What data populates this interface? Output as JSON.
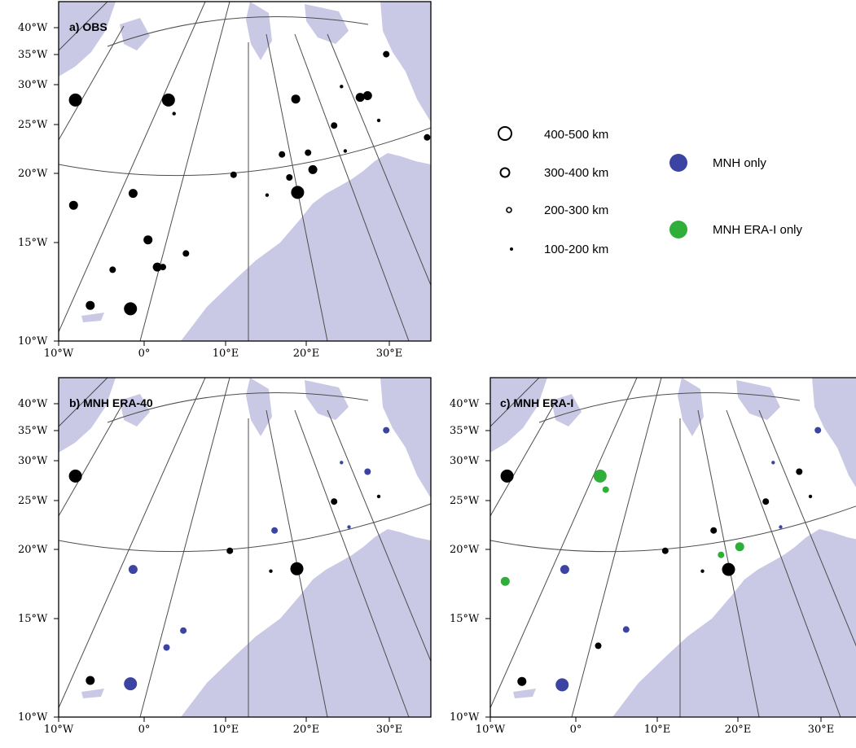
{
  "colors": {
    "land": "#c9c9e6",
    "frame": "#000000",
    "grid": "#4d4d4d",
    "obs": "#000000",
    "mnh_only": "#3b43a3",
    "mnh_erai_only": "#2fae3a"
  },
  "axes": {
    "y_ticks": [
      "40°W",
      "35°W",
      "30°W",
      "25°W",
      "20°W",
      "15°W",
      "10°W"
    ],
    "x_ticks": [
      "10°W",
      "0°",
      "10°E",
      "20°E",
      "30°E"
    ]
  },
  "legend": {
    "sizes": [
      {
        "label": "400-500 km",
        "size_class": 4
      },
      {
        "label": "300-400 km",
        "size_class": 3
      },
      {
        "label": "200-300 km",
        "size_class": 2
      },
      {
        "label": "100-200 km",
        "size_class": 1
      }
    ],
    "categories": [
      {
        "label": "MNH  only",
        "color_key": "mnh_only"
      },
      {
        "label": "MNH  ERA-I  only",
        "color_key": "mnh_erai_only"
      }
    ]
  },
  "panels": [
    {
      "id": "a",
      "title": "a) OBS",
      "points": [
        {
          "x": 0.045,
          "y": 0.29,
          "size": 4,
          "cat": "obs"
        },
        {
          "x": 0.295,
          "y": 0.29,
          "size": 4,
          "cat": "obs"
        },
        {
          "x": 0.31,
          "y": 0.33,
          "size": 1,
          "cat": "obs"
        },
        {
          "x": 0.88,
          "y": 0.155,
          "size": 2,
          "cat": "obs"
        },
        {
          "x": 0.637,
          "y": 0.287,
          "size": 3,
          "cat": "obs"
        },
        {
          "x": 0.76,
          "y": 0.25,
          "size": 1,
          "cat": "obs"
        },
        {
          "x": 0.81,
          "y": 0.282,
          "size": 3,
          "cat": "obs"
        },
        {
          "x": 0.83,
          "y": 0.277,
          "size": 3,
          "cat": "obs"
        },
        {
          "x": 0.86,
          "y": 0.35,
          "size": 1,
          "cat": "obs"
        },
        {
          "x": 0.74,
          "y": 0.365,
          "size": 2,
          "cat": "obs"
        },
        {
          "x": 0.99,
          "y": 0.4,
          "size": 2,
          "cat": "obs"
        },
        {
          "x": 0.6,
          "y": 0.45,
          "size": 2,
          "cat": "obs"
        },
        {
          "x": 0.67,
          "y": 0.445,
          "size": 2,
          "cat": "obs"
        },
        {
          "x": 0.77,
          "y": 0.44,
          "size": 1,
          "cat": "obs"
        },
        {
          "x": 0.683,
          "y": 0.495,
          "size": 3,
          "cat": "obs"
        },
        {
          "x": 0.62,
          "y": 0.518,
          "size": 2,
          "cat": "obs"
        },
        {
          "x": 0.47,
          "y": 0.51,
          "size": 2,
          "cat": "obs"
        },
        {
          "x": 0.56,
          "y": 0.57,
          "size": 1,
          "cat": "obs"
        },
        {
          "x": 0.642,
          "y": 0.562,
          "size": 4,
          "cat": "obs"
        },
        {
          "x": 0.04,
          "y": 0.6,
          "size": 3,
          "cat": "obs"
        },
        {
          "x": 0.2,
          "y": 0.565,
          "size": 3,
          "cat": "obs"
        },
        {
          "x": 0.24,
          "y": 0.702,
          "size": 3,
          "cat": "obs"
        },
        {
          "x": 0.342,
          "y": 0.742,
          "size": 2,
          "cat": "obs"
        },
        {
          "x": 0.265,
          "y": 0.782,
          "size": 3,
          "cat": "obs"
        },
        {
          "x": 0.28,
          "y": 0.782,
          "size": 2,
          "cat": "obs"
        },
        {
          "x": 0.145,
          "y": 0.79,
          "size": 2,
          "cat": "obs"
        },
        {
          "x": 0.085,
          "y": 0.895,
          "size": 3,
          "cat": "obs"
        },
        {
          "x": 0.193,
          "y": 0.905,
          "size": 4,
          "cat": "obs"
        }
      ]
    },
    {
      "id": "b",
      "title": "b)  MNH  ERA-40",
      "points": [
        {
          "x": 0.045,
          "y": 0.29,
          "size": 4,
          "cat": "obs"
        },
        {
          "x": 0.88,
          "y": 0.155,
          "size": 2,
          "cat": "mnh_only"
        },
        {
          "x": 0.76,
          "y": 0.25,
          "size": 1,
          "cat": "mnh_only"
        },
        {
          "x": 0.83,
          "y": 0.277,
          "size": 2,
          "cat": "mnh_only"
        },
        {
          "x": 0.86,
          "y": 0.35,
          "size": 1,
          "cat": "obs"
        },
        {
          "x": 0.74,
          "y": 0.365,
          "size": 2,
          "cat": "obs"
        },
        {
          "x": 0.58,
          "y": 0.45,
          "size": 2,
          "cat": "mnh_only"
        },
        {
          "x": 0.78,
          "y": 0.44,
          "size": 1,
          "cat": "mnh_only"
        },
        {
          "x": 0.2,
          "y": 0.565,
          "size": 3,
          "cat": "mnh_only"
        },
        {
          "x": 0.46,
          "y": 0.51,
          "size": 2,
          "cat": "obs"
        },
        {
          "x": 0.57,
          "y": 0.57,
          "size": 1,
          "cat": "obs"
        },
        {
          "x": 0.64,
          "y": 0.563,
          "size": 4,
          "cat": "obs"
        },
        {
          "x": 0.335,
          "y": 0.745,
          "size": 2,
          "cat": "mnh_only"
        },
        {
          "x": 0.29,
          "y": 0.795,
          "size": 2,
          "cat": "mnh_only"
        },
        {
          "x": 0.085,
          "y": 0.892,
          "size": 3,
          "cat": "obs"
        },
        {
          "x": 0.193,
          "y": 0.902,
          "size": 4,
          "cat": "mnh_only"
        }
      ]
    },
    {
      "id": "c",
      "title": "c)  MNH  ERA-I",
      "points": [
        {
          "x": 0.045,
          "y": 0.29,
          "size": 4,
          "cat": "obs"
        },
        {
          "x": 0.295,
          "y": 0.29,
          "size": 4,
          "cat": "mnh_erai_only"
        },
        {
          "x": 0.31,
          "y": 0.33,
          "size": 2,
          "cat": "mnh_erai_only"
        },
        {
          "x": 0.88,
          "y": 0.155,
          "size": 2,
          "cat": "mnh_only"
        },
        {
          "x": 0.76,
          "y": 0.25,
          "size": 1,
          "cat": "mnh_only"
        },
        {
          "x": 0.83,
          "y": 0.277,
          "size": 2,
          "cat": "obs"
        },
        {
          "x": 0.86,
          "y": 0.35,
          "size": 1,
          "cat": "obs"
        },
        {
          "x": 0.74,
          "y": 0.365,
          "size": 2,
          "cat": "obs"
        },
        {
          "x": 0.6,
          "y": 0.45,
          "size": 2,
          "cat": "obs"
        },
        {
          "x": 0.78,
          "y": 0.44,
          "size": 1,
          "cat": "mnh_only"
        },
        {
          "x": 0.67,
          "y": 0.498,
          "size": 3,
          "cat": "mnh_erai_only"
        },
        {
          "x": 0.62,
          "y": 0.522,
          "size": 2,
          "cat": "mnh_erai_only"
        },
        {
          "x": 0.47,
          "y": 0.51,
          "size": 2,
          "cat": "obs"
        },
        {
          "x": 0.57,
          "y": 0.57,
          "size": 1,
          "cat": "obs"
        },
        {
          "x": 0.64,
          "y": 0.565,
          "size": 4,
          "cat": "obs"
        },
        {
          "x": 0.04,
          "y": 0.6,
          "size": 3,
          "cat": "mnh_erai_only"
        },
        {
          "x": 0.2,
          "y": 0.565,
          "size": 3,
          "cat": "mnh_only"
        },
        {
          "x": 0.365,
          "y": 0.742,
          "size": 2,
          "cat": "mnh_only"
        },
        {
          "x": 0.29,
          "y": 0.79,
          "size": 2,
          "cat": "obs"
        },
        {
          "x": 0.085,
          "y": 0.895,
          "size": 3,
          "cat": "obs"
        },
        {
          "x": 0.193,
          "y": 0.905,
          "size": 4,
          "cat": "mnh_only"
        }
      ]
    }
  ]
}
